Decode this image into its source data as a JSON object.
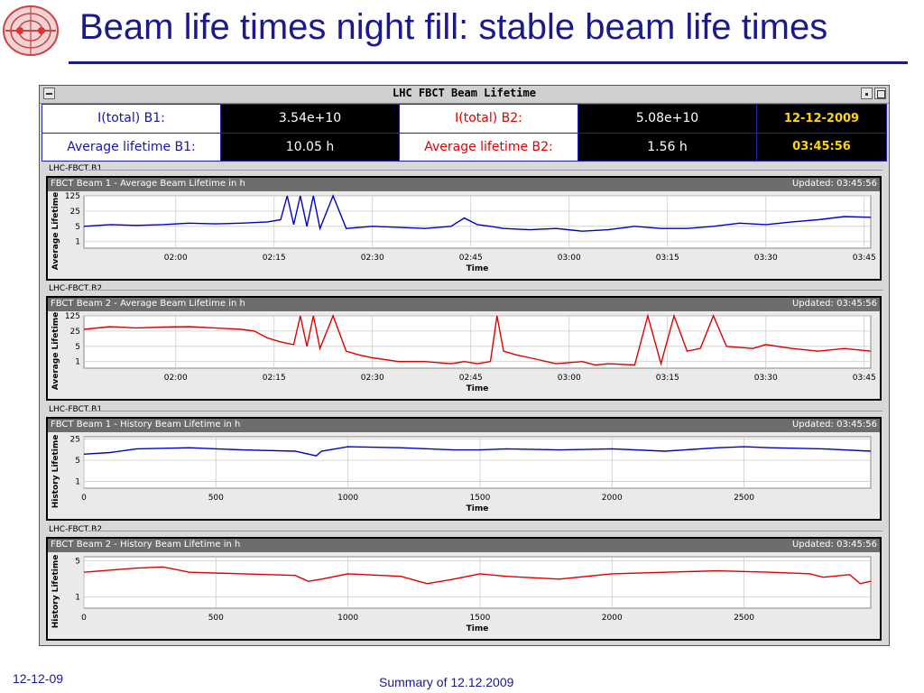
{
  "slide": {
    "title": "Beam life times night fill: stable beam life times",
    "footer_date": "12-12-09",
    "footer_summary": "Summary of 12.12.2009"
  },
  "window": {
    "title": "LHC FBCT Beam Lifetime"
  },
  "summary": {
    "b1_total_label": "I(total) B1:",
    "b1_total_value": "3.54e+10",
    "b2_total_label": "I(total) B2:",
    "b2_total_value": "5.08e+10",
    "date": "12-12-2009",
    "b1_avg_label": "Average lifetime B1:",
    "b1_avg_value": "10.05 h",
    "b2_avg_label": "Average lifetime B2:",
    "b2_avg_value": "1.56 h",
    "time": "03:45:56"
  },
  "colors": {
    "beam1": "#0000cc",
    "beam2": "#e00000",
    "title": "#1a1a8c"
  },
  "panels": [
    {
      "label": "LHC-FBCT B1",
      "title": "FBCT Beam 1 - Average Beam Lifetime in h",
      "updated": "Updated: 03:45:56",
      "ylabel": "Average Lifetime",
      "xlabel": "Time"
    },
    {
      "label": "LHC-FBCT B2",
      "title": "FBCT Beam 2 - Average Beam Lifetime in h",
      "updated": "Updated: 03:45:56",
      "ylabel": "Average Lifetime",
      "xlabel": "Time"
    },
    {
      "label": "LHC-FBCT B1",
      "title": "FBCT Beam 1 - History Beam Lifetime in h",
      "updated": "Updated: 03:45:56",
      "ylabel": "History Lifetime",
      "xlabel": "Time"
    },
    {
      "label": "LHC-FBCT B2",
      "title": "FBCT Beam 2 - History Beam Lifetime in h",
      "updated": "Updated: 03:45:56",
      "ylabel": "History Lifetime",
      "xlabel": "Time"
    }
  ],
  "chart_data": [
    {
      "type": "line",
      "scale": "log",
      "color": "#0000cc",
      "x_ticks": [
        "02:00",
        "02:15",
        "02:30",
        "02:45",
        "03:00",
        "03:15",
        "03:30",
        "03:45"
      ],
      "x_tick_values": [
        6,
        21,
        36,
        51,
        66,
        81,
        96,
        111
      ],
      "xlim": [
        -8,
        112
      ],
      "y_ticks": [
        "125",
        "25",
        "5",
        "1"
      ],
      "y_tick_values": [
        125,
        25,
        5,
        1
      ],
      "ylim": [
        0.5,
        125
      ],
      "series": [
        {
          "x": [
            -8,
            -4,
            0,
            4,
            8,
            12,
            16,
            20,
            22,
            23,
            24,
            25,
            26,
            27,
            28,
            30,
            32,
            36,
            40,
            44,
            48,
            50,
            52,
            54,
            56,
            60,
            64,
            68,
            72,
            76,
            80,
            84,
            88,
            92,
            96,
            100,
            104,
            108,
            112
          ],
          "y": [
            5,
            6,
            5.5,
            6,
            7,
            6.5,
            7,
            8,
            10,
            125,
            6,
            125,
            5,
            125,
            4,
            125,
            4,
            5,
            4.5,
            4,
            5,
            12,
            6,
            5,
            4,
            3.5,
            4,
            3,
            3.5,
            5,
            4,
            4,
            5,
            7,
            6,
            8,
            10,
            14,
            13
          ]
        }
      ]
    },
    {
      "type": "line",
      "scale": "log",
      "color": "#e00000",
      "x_ticks": [
        "02:00",
        "02:15",
        "02:30",
        "02:45",
        "03:00",
        "03:15",
        "03:30",
        "03:45"
      ],
      "x_tick_values": [
        6,
        21,
        36,
        51,
        66,
        81,
        96,
        111
      ],
      "xlim": [
        -8,
        112
      ],
      "y_ticks": [
        "125",
        "25",
        "5",
        "1"
      ],
      "y_tick_values": [
        125,
        25,
        5,
        1
      ],
      "ylim": [
        0.5,
        125
      ],
      "series": [
        {
          "x": [
            -8,
            -4,
            0,
            4,
            8,
            12,
            16,
            18,
            20,
            22,
            24,
            25,
            26,
            27,
            28,
            30,
            32,
            34,
            36,
            40,
            44,
            48,
            50,
            52,
            54,
            55,
            56,
            58,
            60,
            64,
            68,
            70,
            72,
            76,
            78,
            80,
            82,
            84,
            86,
            88,
            90,
            94,
            96,
            100,
            104,
            108,
            112
          ],
          "y": [
            30,
            40,
            35,
            38,
            40,
            35,
            30,
            25,
            12,
            8,
            6,
            125,
            5,
            125,
            4,
            125,
            3,
            2,
            1.5,
            1,
            1,
            0.8,
            1,
            0.8,
            1,
            125,
            3,
            2,
            1.5,
            0.8,
            1,
            0.7,
            0.8,
            0.7,
            125,
            0.8,
            125,
            3,
            4,
            125,
            5,
            4,
            6,
            4,
            3,
            4,
            3
          ]
        }
      ]
    },
    {
      "type": "line",
      "scale": "log",
      "color": "#0000cc",
      "x_ticks": [
        "0",
        "500",
        "1000",
        "1500",
        "2000",
        "2500"
      ],
      "x_tick_values": [
        0,
        500,
        1000,
        1500,
        2000,
        2500
      ],
      "xlim": [
        0,
        2980
      ],
      "y_ticks": [
        "25",
        "5",
        "1"
      ],
      "y_tick_values": [
        25,
        5,
        1
      ],
      "ylim": [
        0.6,
        30
      ],
      "series": [
        {
          "x": [
            0,
            100,
            200,
            400,
            600,
            800,
            880,
            900,
            1000,
            1200,
            1400,
            1500,
            1600,
            1800,
            2000,
            2200,
            2400,
            2500,
            2600,
            2800,
            2980
          ],
          "y": [
            8,
            9,
            12,
            13,
            11,
            10,
            7,
            10,
            14,
            13,
            11,
            11,
            12,
            11,
            12,
            10,
            13,
            14,
            13,
            12,
            10
          ]
        }
      ]
    },
    {
      "type": "line",
      "scale": "log",
      "color": "#e00000",
      "x_ticks": [
        "0",
        "500",
        "1000",
        "1500",
        "2000",
        "2500"
      ],
      "x_tick_values": [
        0,
        500,
        1000,
        1500,
        2000,
        2500
      ],
      "xlim": [
        0,
        2980
      ],
      "y_ticks": [
        "5",
        "1"
      ],
      "y_tick_values": [
        5,
        1
      ],
      "ylim": [
        0.6,
        6
      ],
      "series": [
        {
          "x": [
            0,
            100,
            200,
            300,
            400,
            600,
            800,
            850,
            900,
            1000,
            1200,
            1300,
            1400,
            1500,
            1600,
            1800,
            2000,
            2200,
            2400,
            2600,
            2750,
            2800,
            2900,
            2940,
            2980
          ],
          "y": [
            3,
            3.3,
            3.6,
            3.8,
            3,
            2.8,
            2.6,
            2,
            2.2,
            2.8,
            2.5,
            1.8,
            2.2,
            2.8,
            2.5,
            2.2,
            2.8,
            3,
            3.2,
            3,
            2.8,
            2.4,
            2.7,
            1.8,
            2
          ]
        }
      ]
    }
  ]
}
